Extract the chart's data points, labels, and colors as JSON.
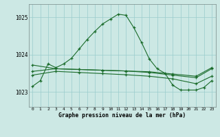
{
  "title": "Graphe pression niveau de la mer (hPa)",
  "bg_color": "#cce8e4",
  "grid_color": "#99cccc",
  "line_color": "#1a6b2a",
  "marker_color": "#1a6b2a",
  "xlim": [
    -0.5,
    23.5
  ],
  "ylim": [
    1022.6,
    1025.35
  ],
  "yticks": [
    1023,
    1024,
    1025
  ],
  "series1": {
    "x": [
      0,
      1,
      2,
      3,
      4,
      5,
      6,
      7,
      8,
      9,
      10,
      11,
      12,
      13,
      14,
      15,
      16,
      17,
      18,
      19,
      20,
      21,
      22,
      23
    ],
    "y": [
      1023.15,
      1023.3,
      1023.75,
      1023.65,
      1023.75,
      1023.9,
      1024.15,
      1024.4,
      1024.62,
      1024.82,
      1024.95,
      1025.08,
      1025.05,
      1024.72,
      1024.32,
      1023.88,
      1023.62,
      1023.5,
      1023.18,
      1023.05,
      1023.05,
      1023.05,
      1023.12,
      1023.3
    ]
  },
  "series2": {
    "x": [
      0,
      3,
      6,
      9,
      12,
      15,
      18,
      21,
      23
    ],
    "y": [
      1023.55,
      1023.62,
      1023.6,
      1023.58,
      1023.56,
      1023.52,
      1023.45,
      1023.38,
      1023.62
    ]
  },
  "series3": {
    "x": [
      0,
      3,
      6,
      9,
      12,
      15,
      18,
      21,
      23
    ],
    "y": [
      1023.45,
      1023.55,
      1023.52,
      1023.49,
      1023.46,
      1023.42,
      1023.35,
      1023.22,
      1023.42
    ]
  },
  "series4": {
    "x": [
      0,
      3,
      6,
      9,
      12,
      15,
      18,
      21,
      23
    ],
    "y": [
      1023.72,
      1023.62,
      1023.6,
      1023.58,
      1023.56,
      1023.54,
      1023.48,
      1023.42,
      1023.65
    ]
  }
}
